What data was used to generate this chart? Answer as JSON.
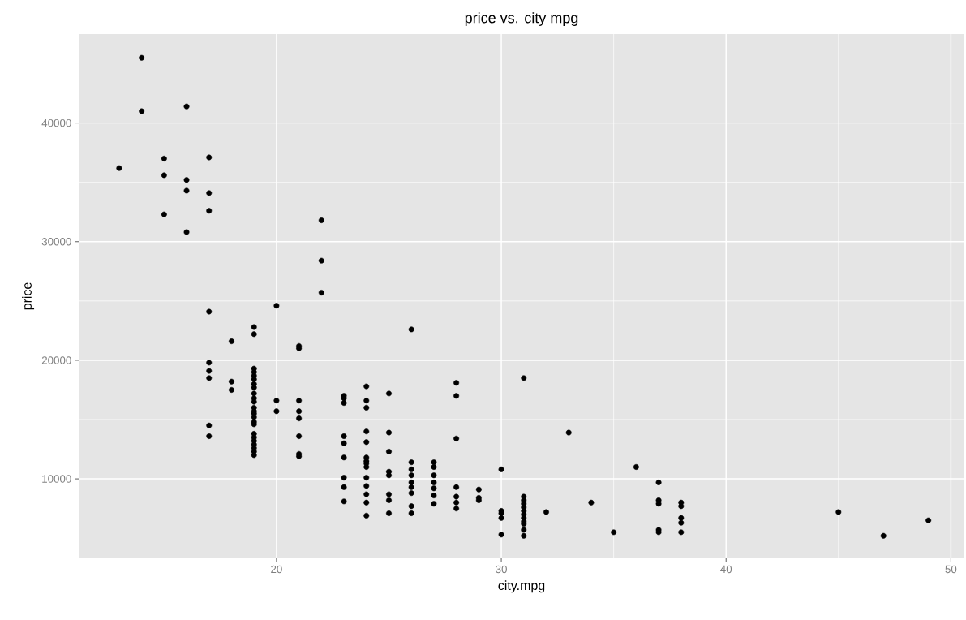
{
  "chart_data": {
    "type": "scatter",
    "title": "price vs. city mpg",
    "xlabel": "city.mpg",
    "ylabel": "price",
    "x": [
      13,
      14,
      14,
      15,
      15,
      15,
      16,
      16,
      16,
      16,
      17,
      17,
      17,
      17,
      17,
      17,
      17,
      17,
      17,
      18,
      18,
      18,
      19,
      19,
      19,
      19,
      19,
      19,
      19,
      19,
      19,
      19,
      19,
      19,
      19,
      19,
      19,
      19,
      19,
      19,
      19,
      19,
      19,
      19,
      19,
      19,
      20,
      20,
      20,
      21,
      21,
      21,
      21,
      21,
      21,
      21,
      21,
      22,
      22,
      22,
      23,
      23,
      23,
      23,
      23,
      23,
      23,
      23,
      23,
      24,
      24,
      24,
      24,
      24,
      24,
      24,
      24,
      24,
      24,
      24,
      24,
      24,
      24,
      25,
      25,
      25,
      25,
      25,
      25,
      25,
      25,
      26,
      26,
      26,
      26,
      26,
      26,
      26,
      26,
      26,
      27,
      27,
      27,
      27,
      27,
      27,
      27,
      28,
      28,
      28,
      28,
      28,
      28,
      28,
      29,
      29,
      29,
      30,
      30,
      30,
      30,
      30,
      31,
      31,
      31,
      31,
      31,
      31,
      31,
      31,
      31,
      31,
      31,
      31,
      32,
      33,
      34,
      35,
      36,
      37,
      37,
      37,
      37,
      37,
      38,
      38,
      38,
      38,
      38,
      45,
      47,
      49
    ],
    "values": [
      36200,
      45500,
      41000,
      37000,
      35600,
      32300,
      41400,
      35200,
      34300,
      30800,
      37100,
      34100,
      32600,
      24100,
      19800,
      19100,
      18500,
      14500,
      13600,
      21600,
      18200,
      17500,
      22800,
      22200,
      19300,
      19000,
      18700,
      18400,
      18000,
      17700,
      17200,
      16800,
      16500,
      16000,
      15700,
      15500,
      15200,
      14800,
      14600,
      13800,
      13500,
      13200,
      12900,
      12600,
      12300,
      12000,
      24600,
      16600,
      15700,
      21200,
      21000,
      16600,
      15700,
      15100,
      13600,
      12100,
      11900,
      31800,
      28400,
      25700,
      17000,
      16800,
      16400,
      13600,
      13000,
      11800,
      10100,
      9300,
      8100,
      17800,
      16600,
      16000,
      14000,
      13100,
      11800,
      11500,
      11300,
      11000,
      10100,
      9400,
      8700,
      8000,
      6900,
      17200,
      13900,
      12300,
      10600,
      10300,
      8700,
      8200,
      7100,
      22600,
      11400,
      10800,
      10300,
      9700,
      9300,
      8800,
      7700,
      7100,
      11400,
      11000,
      10300,
      9700,
      9200,
      8600,
      7900,
      18100,
      17000,
      13400,
      9300,
      8500,
      8000,
      7500,
      9100,
      8400,
      8200,
      10800,
      7300,
      7100,
      6700,
      5300,
      18500,
      8500,
      8200,
      7900,
      7600,
      7300,
      7000,
      6700,
      6400,
      6200,
      5700,
      5200,
      7200,
      13900,
      8000,
      5500,
      11000,
      9700,
      8200,
      7900,
      5700,
      5500,
      8000,
      7700,
      6700,
      6300,
      5500,
      7200,
      5200,
      6500
    ],
    "color": "#000000",
    "marker": "circle",
    "grid": true,
    "xlim": [
      11.2,
      50.6
    ],
    "ylim": [
      3300,
      47500
    ],
    "xticks": [
      20,
      30,
      40,
      50
    ],
    "yticks": [
      10000,
      20000,
      30000,
      40000
    ]
  }
}
